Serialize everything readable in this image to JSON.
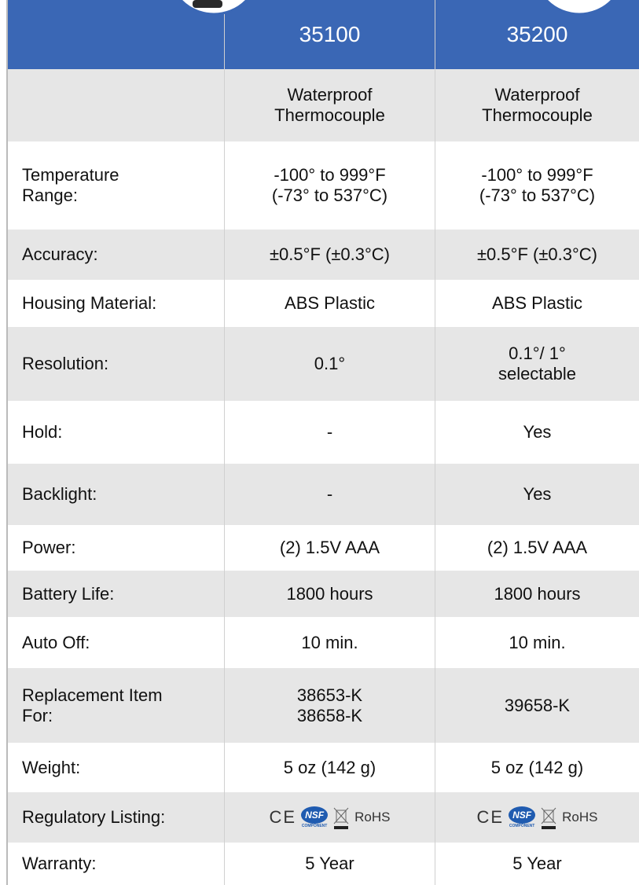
{
  "header": {
    "models": [
      "35100",
      "35200"
    ]
  },
  "types": [
    "Waterproof\nThermocouple",
    "Waterproof\nThermocouple"
  ],
  "table": {
    "rows": [
      {
        "label": "Temperature\nRange:",
        "values": [
          "-100° to 999°F\n(-73° to 537°C)",
          "-100° to 999°F\n(-73° to 537°C)"
        ]
      },
      {
        "label": "Accuracy:",
        "values": [
          "±0.5°F (±0.3°C)",
          "±0.5°F (±0.3°C)"
        ]
      },
      {
        "label": "Housing Material:",
        "values": [
          "ABS Plastic",
          "ABS Plastic"
        ]
      },
      {
        "label": "Resolution:",
        "values": [
          "0.1°",
          "0.1°/ 1°\nselectable"
        ]
      },
      {
        "label": "Hold:",
        "values": [
          "-",
          "Yes"
        ]
      },
      {
        "label": "Backlight:",
        "values": [
          "-",
          "Yes"
        ]
      },
      {
        "label": "Power:",
        "values": [
          "(2) 1.5V AAA",
          "(2) 1.5V AAA"
        ]
      },
      {
        "label": "Battery Life:",
        "values": [
          "1800 hours",
          "1800 hours"
        ]
      },
      {
        "label": "Auto Off:",
        "values": [
          "10 min.",
          "10 min."
        ]
      },
      {
        "label": "Replacement Item\nFor:",
        "values": [
          "38653-K\n38658-K",
          "39658-K"
        ]
      },
      {
        "label": "Weight:",
        "values": [
          "5 oz (142 g)",
          "5 oz (142 g)"
        ]
      },
      {
        "label": "Regulatory Listing:",
        "logos": [
          {
            "ce": "CE",
            "nsf": "NSF",
            "component": "COMPONENT",
            "rohs": "RoHS"
          },
          {
            "ce": "CE",
            "nsf": "NSF",
            "component": "COMPONENT",
            "rohs": "RoHS"
          }
        ]
      },
      {
        "label": "Warranty:",
        "values": [
          "5 Year",
          "5 Year"
        ]
      }
    ]
  }
}
